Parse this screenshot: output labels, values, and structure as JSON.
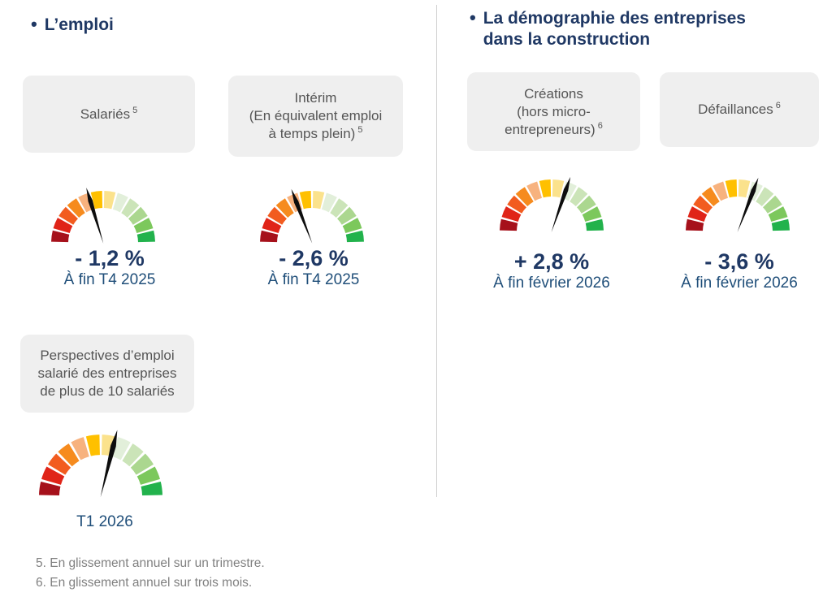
{
  "left": {
    "title": "L’emploi",
    "salaries_card": {
      "label": "Salariés",
      "ref": "5"
    },
    "interim_card": {
      "line1": "Intérim",
      "line2": "(En équivalent emploi",
      "line3": "à temps plein)",
      "ref": "5"
    },
    "perspectives_card": {
      "label": "Perspectives d’emploi salarié des entreprises de plus de 10 salariés"
    },
    "gauge_salaries": {
      "value": "- 1,2 %",
      "caption": "À fin T4 2025",
      "needle_deg": 107
    },
    "gauge_interim": {
      "value": "- 2,6 %",
      "caption": "À fin T4 2025",
      "needle_deg": 111
    },
    "gauge_perspectives": {
      "caption": "T1 2026",
      "needle_deg": 76
    }
  },
  "right": {
    "title_line1": "La démographie des entreprises",
    "title_line2": "dans la construction",
    "creations_card": {
      "line1": "Créations",
      "line2": "(hors micro-",
      "line3": "entrepreneurs)",
      "ref": "6"
    },
    "defaillances_card": {
      "label": "Défaillances",
      "ref": "6"
    },
    "gauge_creations": {
      "value": "+ 2,8 %",
      "caption": "À fin février 2026",
      "needle_deg": 71
    },
    "gauge_defaillances": {
      "value": "- 3,6 %",
      "caption": "À fin février 2026",
      "needle_deg": 69
    }
  },
  "footnotes": [
    "5. En glissement annuel sur un trimestre.",
    "6. En glissement annuel sur trois mois."
  ],
  "gauge_palette": [
    "#A6111B",
    "#E02418",
    "#F25C1F",
    "#F68B1E",
    "#F7B27E",
    "#FFC000",
    "#FBE28C",
    "#E2EFDA",
    "#CBE4B8",
    "#ABD78F",
    "#7CC85C",
    "#22B24C"
  ],
  "colors": {
    "title": "#1F3864",
    "value": "#1F3864",
    "caption": "#1F4E79",
    "card_bg": "#EFEFEF",
    "card_text": "#555555",
    "footnote": "#808080",
    "divider": "#CFCFCF",
    "needle": "#0D0D0D"
  },
  "chart_data": [
    {
      "type": "gauge",
      "label": "Salariés",
      "value": "- 1,2 %",
      "period": "À fin T4 2025",
      "needle_zone": "just left of vertical, at orange/amber boundary",
      "scale": "12 segments from dark red (left) to bright green (right), 180° arc"
    },
    {
      "type": "gauge",
      "label": "Intérim (En équivalent emploi à temps plein)",
      "value": "- 2,6 %",
      "period": "À fin T4 2025",
      "needle_zone": "left of vertical, over light-orange segment",
      "scale": "12 segments from dark red (left) to bright green (right), 180° arc"
    },
    {
      "type": "gauge",
      "label": "Créations (hors micro-entrepreneurs)",
      "value": "+ 2,8 %",
      "period": "À fin février 2026",
      "needle_zone": "just right of vertical, over palest green segment",
      "scale": "12 segments from dark red (left) to bright green (right), 180° arc"
    },
    {
      "type": "gauge",
      "label": "Défaillances",
      "value": "- 3,6 %",
      "period": "À fin février 2026",
      "needle_zone": "just right of vertical, over palest green segment",
      "scale": "12 segments from dark red (left) to bright green (right), 180° arc"
    },
    {
      "type": "gauge",
      "label": "Perspectives d’emploi salarié des entreprises de plus de 10 salariés",
      "value": "",
      "period": "T1 2026",
      "needle_zone": "just right of vertical, at cream/pale-green boundary",
      "scale": "12 segments from dark red (left) to bright green (right), 180° arc"
    }
  ]
}
